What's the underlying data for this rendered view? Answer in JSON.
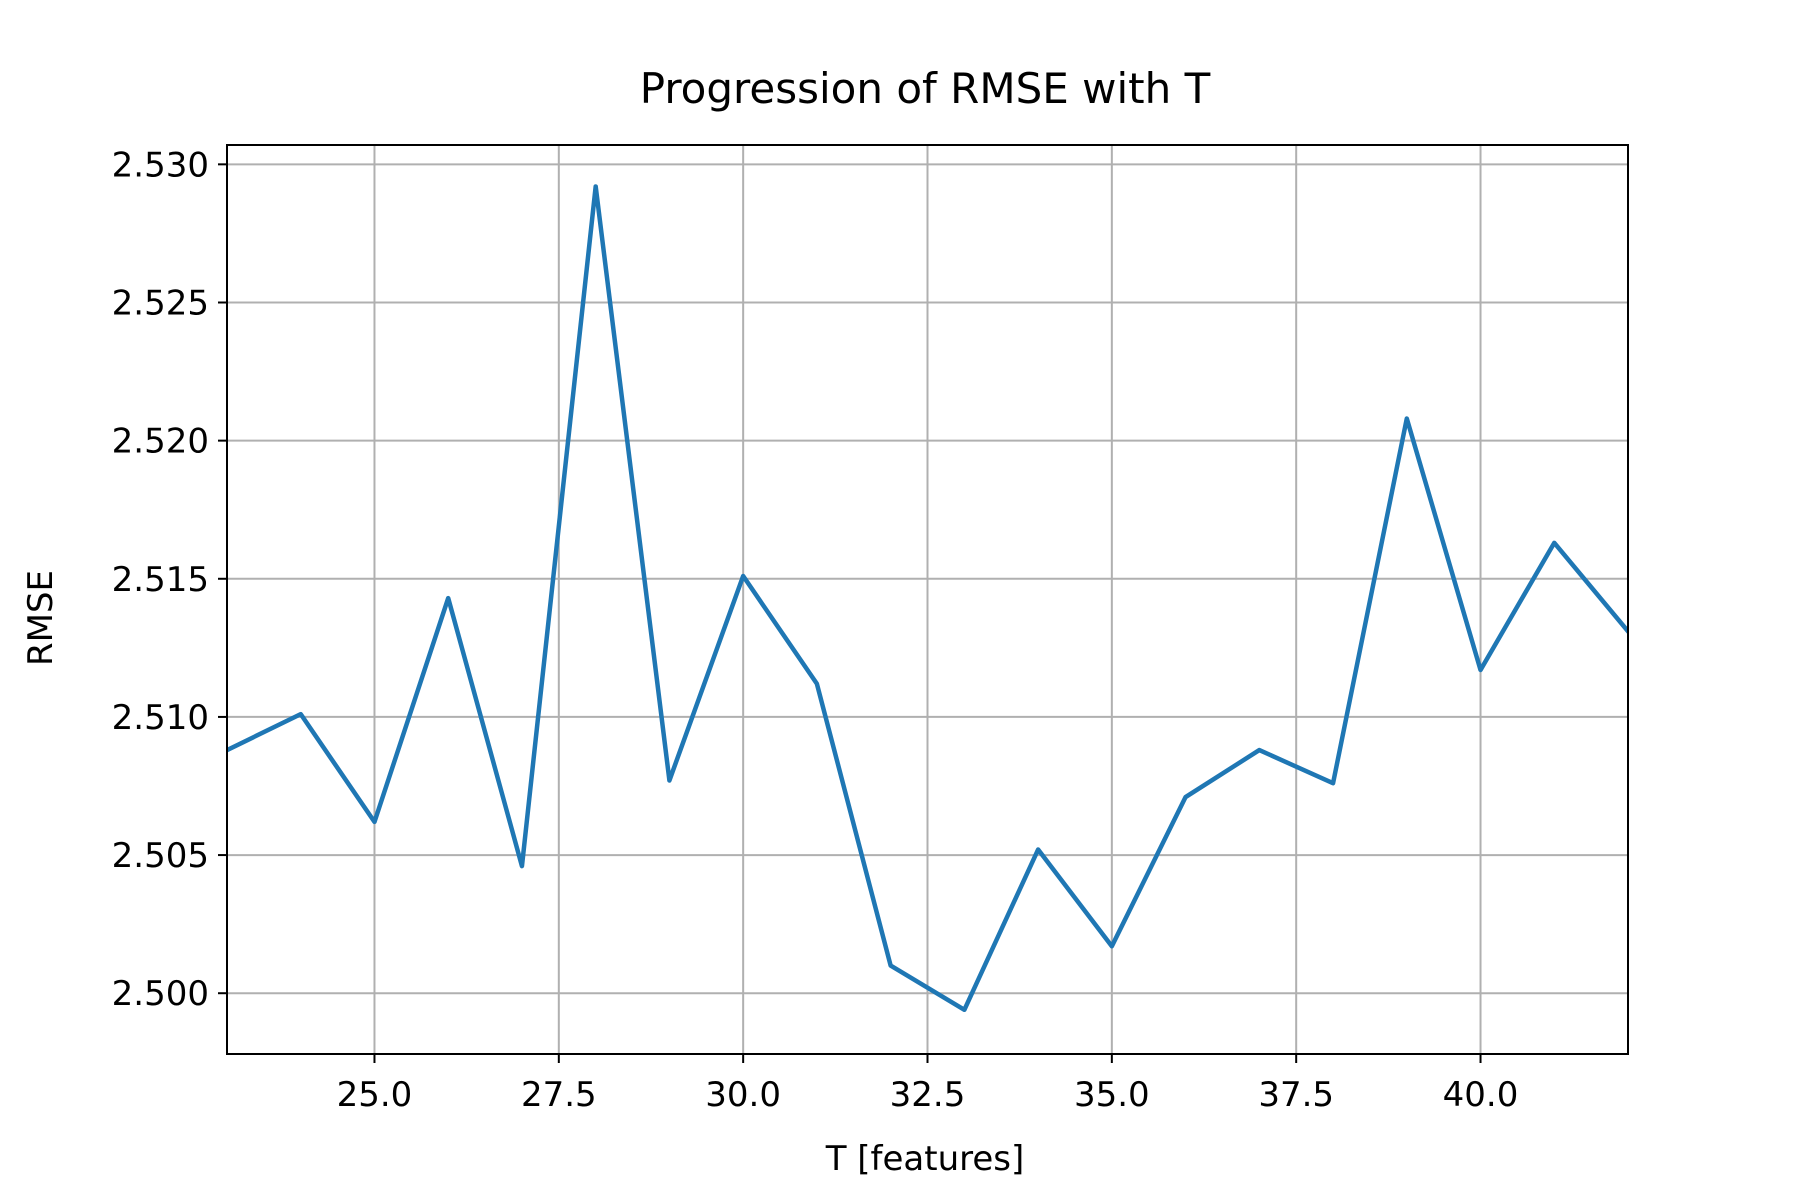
{
  "chart_data": {
    "type": "line",
    "title": "Progression of RMSE with T",
    "xlabel": "T [features]",
    "ylabel": "RMSE",
    "xlim": [
      23.0,
      42.0
    ],
    "ylim": [
      2.4978,
      2.5307
    ],
    "x_ticks": [
      "25.0",
      "27.5",
      "30.0",
      "32.5",
      "35.0",
      "37.5",
      "40.0"
    ],
    "x_tick_values": [
      25.0,
      27.5,
      30.0,
      32.5,
      35.0,
      37.5,
      40.0
    ],
    "y_ticks": [
      "2.500",
      "2.505",
      "2.510",
      "2.515",
      "2.520",
      "2.525",
      "2.530"
    ],
    "y_tick_values": [
      2.5,
      2.505,
      2.51,
      2.515,
      2.52,
      2.525,
      2.53
    ],
    "grid": true,
    "line_color": "#1f77b4",
    "grid_color": "#b0b0b0",
    "series": [
      {
        "x": [
          23,
          24,
          25,
          26,
          27,
          28,
          29,
          30,
          31,
          32,
          33,
          34,
          35,
          36,
          37,
          38,
          39,
          40,
          41,
          42
        ],
        "values": [
          2.5088,
          2.5101,
          2.5062,
          2.5143,
          2.5046,
          2.5292,
          2.5077,
          2.5151,
          2.5112,
          2.501,
          2.4994,
          2.5052,
          2.5017,
          2.5071,
          2.5088,
          2.5076,
          2.5208,
          2.5117,
          2.5163,
          2.5131
        ]
      }
    ]
  }
}
